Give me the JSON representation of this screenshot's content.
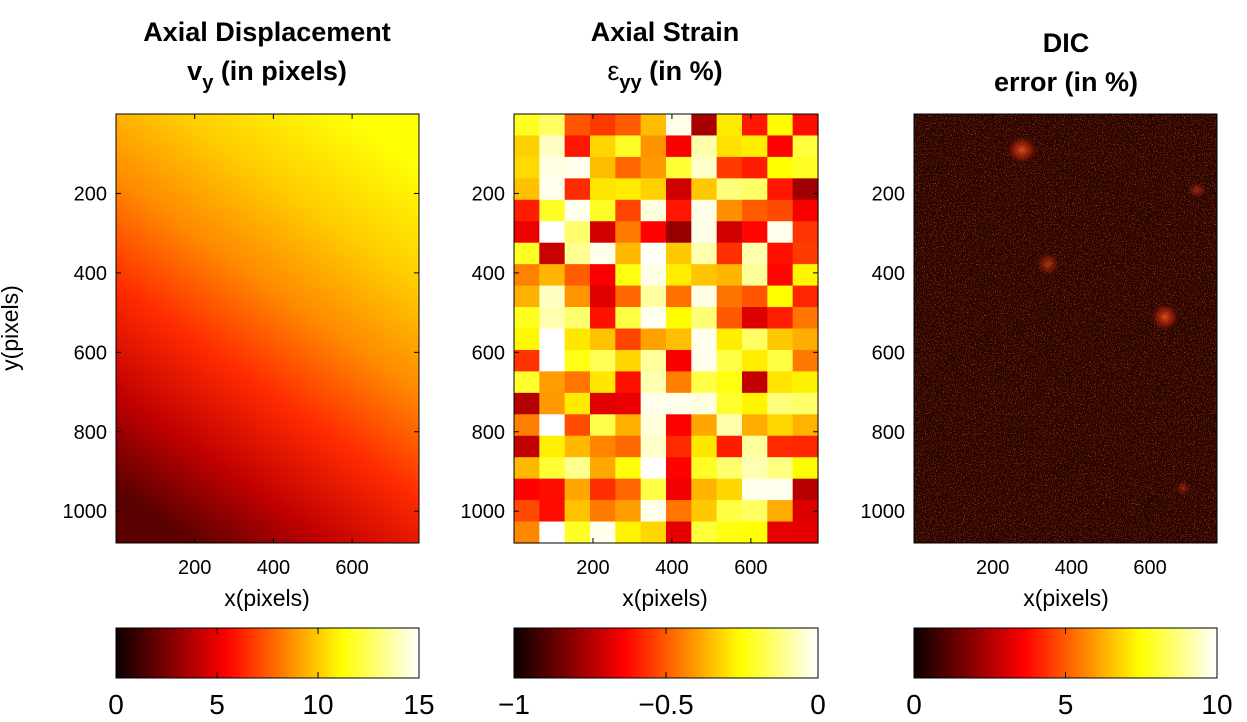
{
  "chart_data": [
    {
      "type": "heatmap",
      "title_line1": "Axial Displacement",
      "title_line2_main": "v",
      "title_line2_sub": "y",
      "title_line2_rest": " (in pixels)",
      "xlabel": "x(pixels)",
      "ylabel": "y(pixels)",
      "xlim": [
        0,
        770
      ],
      "ylim": [
        0,
        1080
      ],
      "xticks": [
        200,
        400,
        600
      ],
      "yticks": [
        200,
        400,
        600,
        800,
        1000
      ],
      "colormap": "hot",
      "colorbar": {
        "range": [
          0,
          15
        ],
        "ticks": [
          0,
          5,
          10,
          15
        ]
      },
      "field": "smooth gradient: ~12-13 at top right, decreasing downward to ~2 at bottom left"
    },
    {
      "type": "heatmap",
      "title_line1": "Axial Strain",
      "title_line2_main": "ε",
      "title_line2_sub": "yy",
      "title_line2_rest": " (in %)",
      "xlabel": "x(pixels)",
      "ylabel": "",
      "xlim": [
        0,
        770
      ],
      "ylim": [
        0,
        1080
      ],
      "xticks": [
        200,
        400,
        600
      ],
      "yticks": [
        200,
        400,
        600,
        800,
        1000
      ],
      "colormap": "hot",
      "colorbar": {
        "range": [
          -1,
          0
        ],
        "ticks": [
          "−1",
          "−0.5",
          "0"
        ]
      },
      "field": "12 vertical strips with blocky cell variation, values mostly between -0.8 and 0"
    },
    {
      "type": "heatmap",
      "title_line1": "DIC",
      "title_line2_main": "error (in %)",
      "title_line2_sub": "",
      "title_line2_rest": "",
      "xlabel": "x(pixels)",
      "ylabel": "",
      "xlim": [
        0,
        770
      ],
      "ylim": [
        0,
        1080
      ],
      "xticks": [
        200,
        400,
        600
      ],
      "yticks": [
        200,
        400,
        600,
        800,
        1000
      ],
      "colormap": "hot",
      "colorbar": {
        "range": [
          0,
          10
        ],
        "ticks": [
          0,
          5,
          10
        ]
      },
      "field": "speckle noise, mostly 0-3 with sparse bright pixels"
    }
  ]
}
